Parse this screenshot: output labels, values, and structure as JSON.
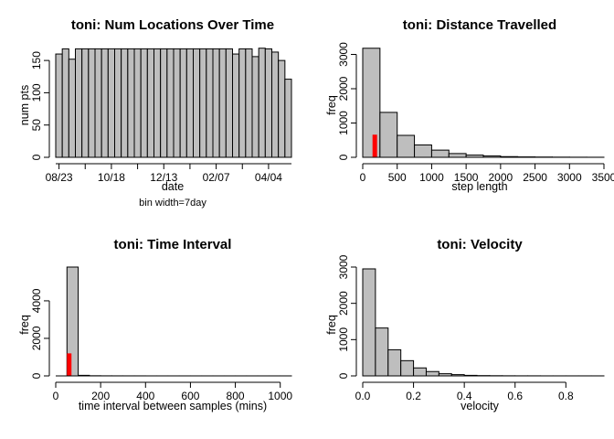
{
  "chart_data": [
    {
      "type": "bar",
      "title": "toni: Num Locations Over Time",
      "xlabel": "date",
      "ylabel": "num pts",
      "note": "bin width=7day",
      "bar_color": "#bebebe",
      "x_tick_labels": [
        "08/23",
        "10/18",
        "12/13",
        "02/07",
        "04/04"
      ],
      "y_ticks": [
        0,
        50,
        100,
        150
      ],
      "ylim": [
        0,
        170
      ],
      "values": [
        160,
        168,
        152,
        168,
        168,
        168,
        168,
        168,
        168,
        168,
        168,
        168,
        168,
        168,
        168,
        168,
        168,
        168,
        168,
        168,
        168,
        168,
        168,
        168,
        168,
        168,
        168,
        160,
        168,
        168,
        156,
        169,
        168,
        163,
        150,
        121
      ]
    },
    {
      "type": "bar",
      "title": "toni: Distance Travelled",
      "xlabel": "step length",
      "ylabel": "freq",
      "bar_color": "#bebebe",
      "highlight_color": "#ff0000",
      "bin_width": 250,
      "x_ticks": [
        0,
        500,
        1000,
        1500,
        2000,
        2500,
        3000,
        3500
      ],
      "xlim": [
        0,
        3500
      ],
      "y_ticks": [
        0,
        1000,
        2000,
        3000
      ],
      "ylim": [
        0,
        3200
      ],
      "values": [
        3180,
        1310,
        640,
        360,
        210,
        110,
        65,
        40,
        20,
        12,
        8,
        5,
        3,
        2
      ],
      "highlight": {
        "x": 175,
        "value": 660
      }
    },
    {
      "type": "bar",
      "title": "toni: Time Interval",
      "xlabel": "time interval between samples (mins)",
      "ylabel": "freq",
      "bar_color": "#bebebe",
      "highlight_color": "#ff0000",
      "bin_width": 50,
      "x_ticks": [
        0,
        200,
        400,
        600,
        800,
        1000
      ],
      "xlim": [
        0,
        1050
      ],
      "y_ticks": [
        0,
        2000,
        4000
      ],
      "ylim": [
        0,
        5800
      ],
      "values": [
        0,
        5800,
        30,
        8,
        4,
        3,
        2,
        2,
        1,
        1,
        1,
        1,
        1,
        1,
        1,
        1,
        1,
        1,
        1,
        1,
        1
      ],
      "highlight": {
        "x": 60,
        "value": 1200
      }
    },
    {
      "type": "bar",
      "title": "toni: Velocity",
      "xlabel": "velocity",
      "ylabel": "freq",
      "bar_color": "#bebebe",
      "bin_width": 0.05,
      "x_ticks": [
        0.0,
        0.2,
        0.4,
        0.6,
        0.8
      ],
      "x_tick_labels": [
        "0.0",
        "0.2",
        "0.4",
        "0.6",
        "0.8"
      ],
      "xlim": [
        0,
        0.95
      ],
      "y_ticks": [
        0,
        1000,
        2000,
        3000
      ],
      "ylim": [
        0,
        3000
      ],
      "values": [
        2950,
        1320,
        720,
        420,
        220,
        120,
        60,
        35,
        15,
        8,
        5,
        3,
        2,
        2,
        1,
        1,
        1,
        1,
        1
      ]
    }
  ]
}
